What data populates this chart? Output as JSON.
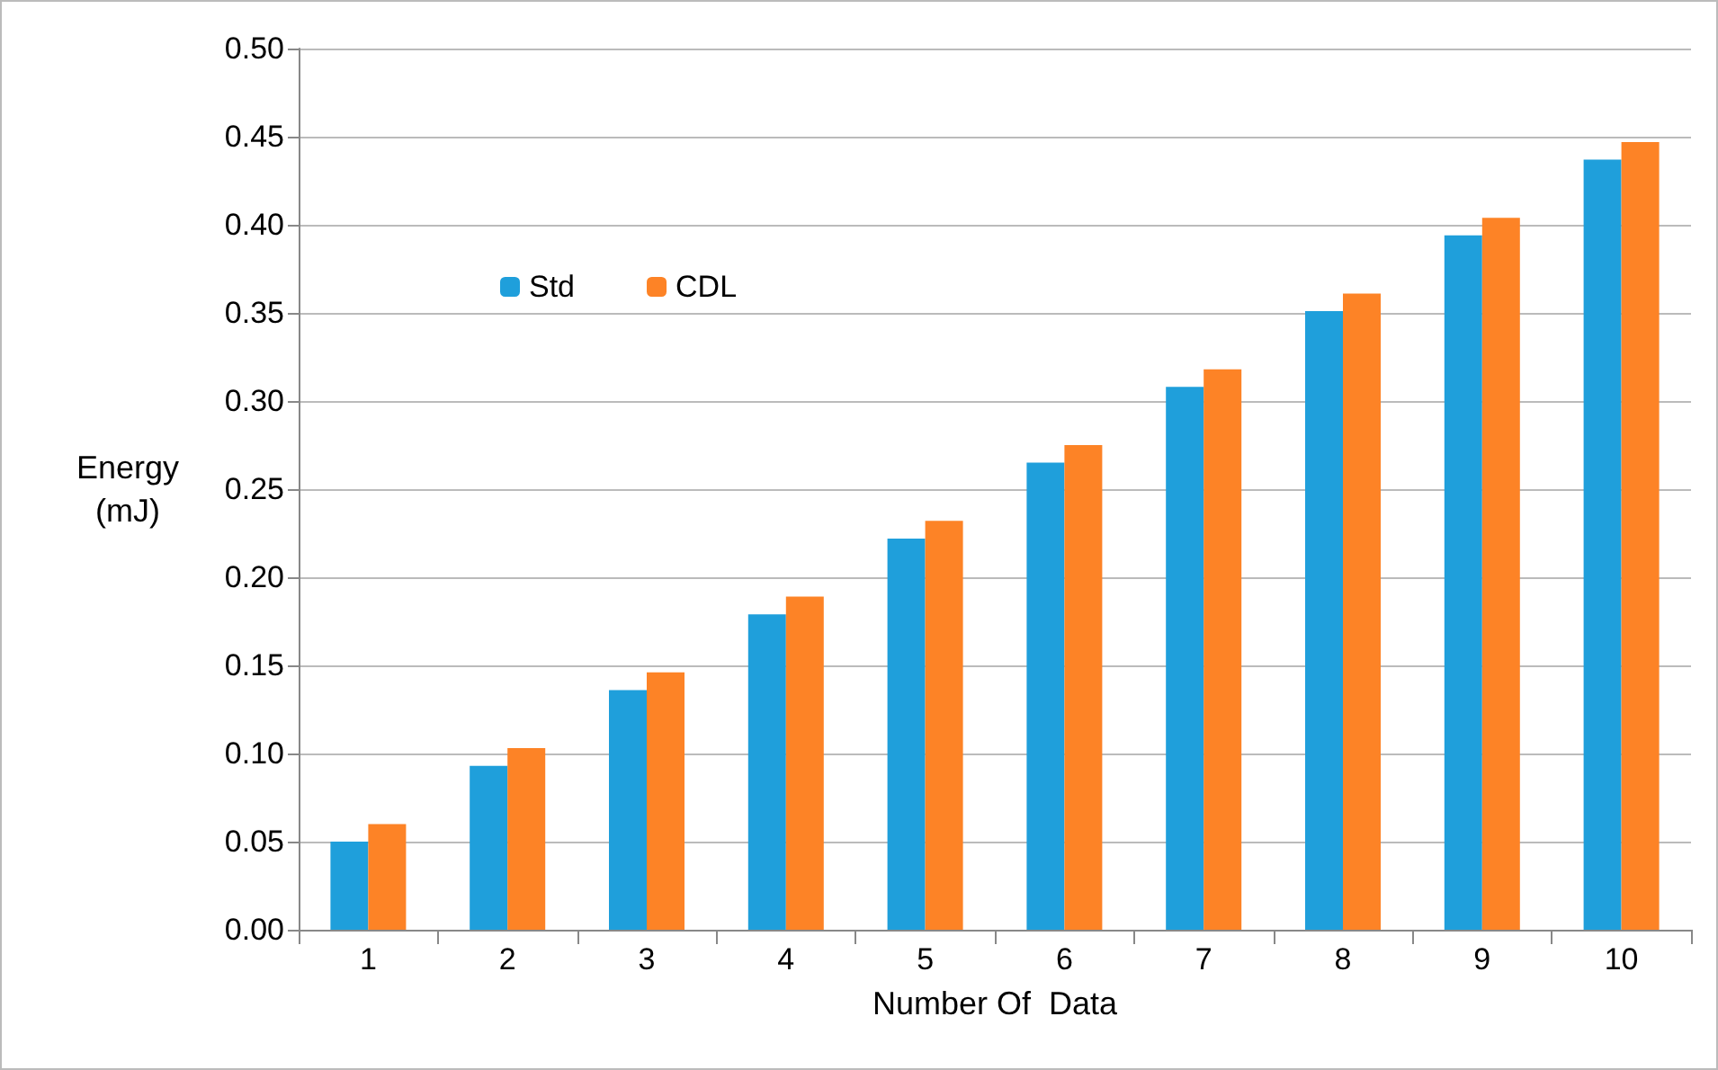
{
  "chart_data": {
    "type": "bar",
    "xlabel": "Number Of  Data",
    "ylabel": "Energy\n(mJ)",
    "categories": [
      "1",
      "2",
      "3",
      "4",
      "5",
      "6",
      "7",
      "8",
      "9",
      "10"
    ],
    "series": [
      {
        "name": "Std",
        "color": "#1f9fdb",
        "values": [
          0.05,
          0.093,
          0.136,
          0.179,
          0.222,
          0.265,
          0.308,
          0.351,
          0.394,
          0.437
        ]
      },
      {
        "name": "CDL",
        "color": "#fd8326",
        "values": [
          0.06,
          0.103,
          0.146,
          0.189,
          0.232,
          0.275,
          0.318,
          0.361,
          0.404,
          0.447
        ]
      }
    ],
    "ylim": [
      0,
      0.5
    ],
    "yticks": [
      {
        "value": 0,
        "label": "0.00"
      },
      {
        "value": 0.05,
        "label": "0.05"
      },
      {
        "value": 0.1,
        "label": "0.10"
      },
      {
        "value": 0.15,
        "label": "0.15"
      },
      {
        "value": 0.2,
        "label": "0.20"
      },
      {
        "value": 0.25,
        "label": "0.25"
      },
      {
        "value": 0.3,
        "label": "0.30"
      },
      {
        "value": 0.35,
        "label": "0.35"
      },
      {
        "value": 0.4,
        "label": "0.40"
      },
      {
        "value": 0.45,
        "label": "0.45"
      },
      {
        "value": 0.5,
        "label": "0.50"
      }
    ],
    "grid": "y",
    "legend": "top left"
  }
}
